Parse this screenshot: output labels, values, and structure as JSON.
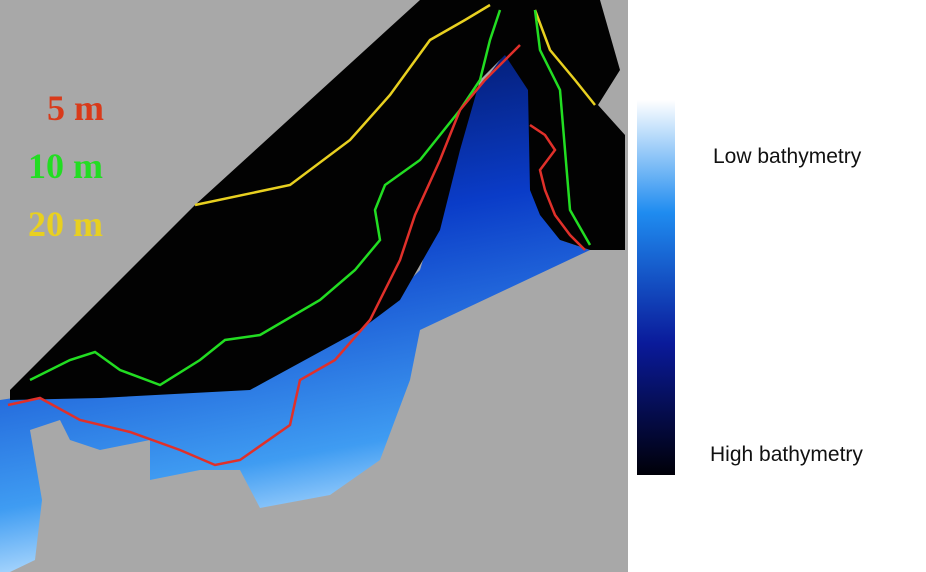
{
  "legend": {
    "items": [
      {
        "label": "5 m",
        "color": "#d93a1a"
      },
      {
        "label": "10 m",
        "color": "#22dd22"
      },
      {
        "label": "20 m",
        "color": "#e8d020"
      }
    ]
  },
  "colorbar": {
    "top_label": "Low bathymetry",
    "bottom_label": "High bathymetry"
  }
}
